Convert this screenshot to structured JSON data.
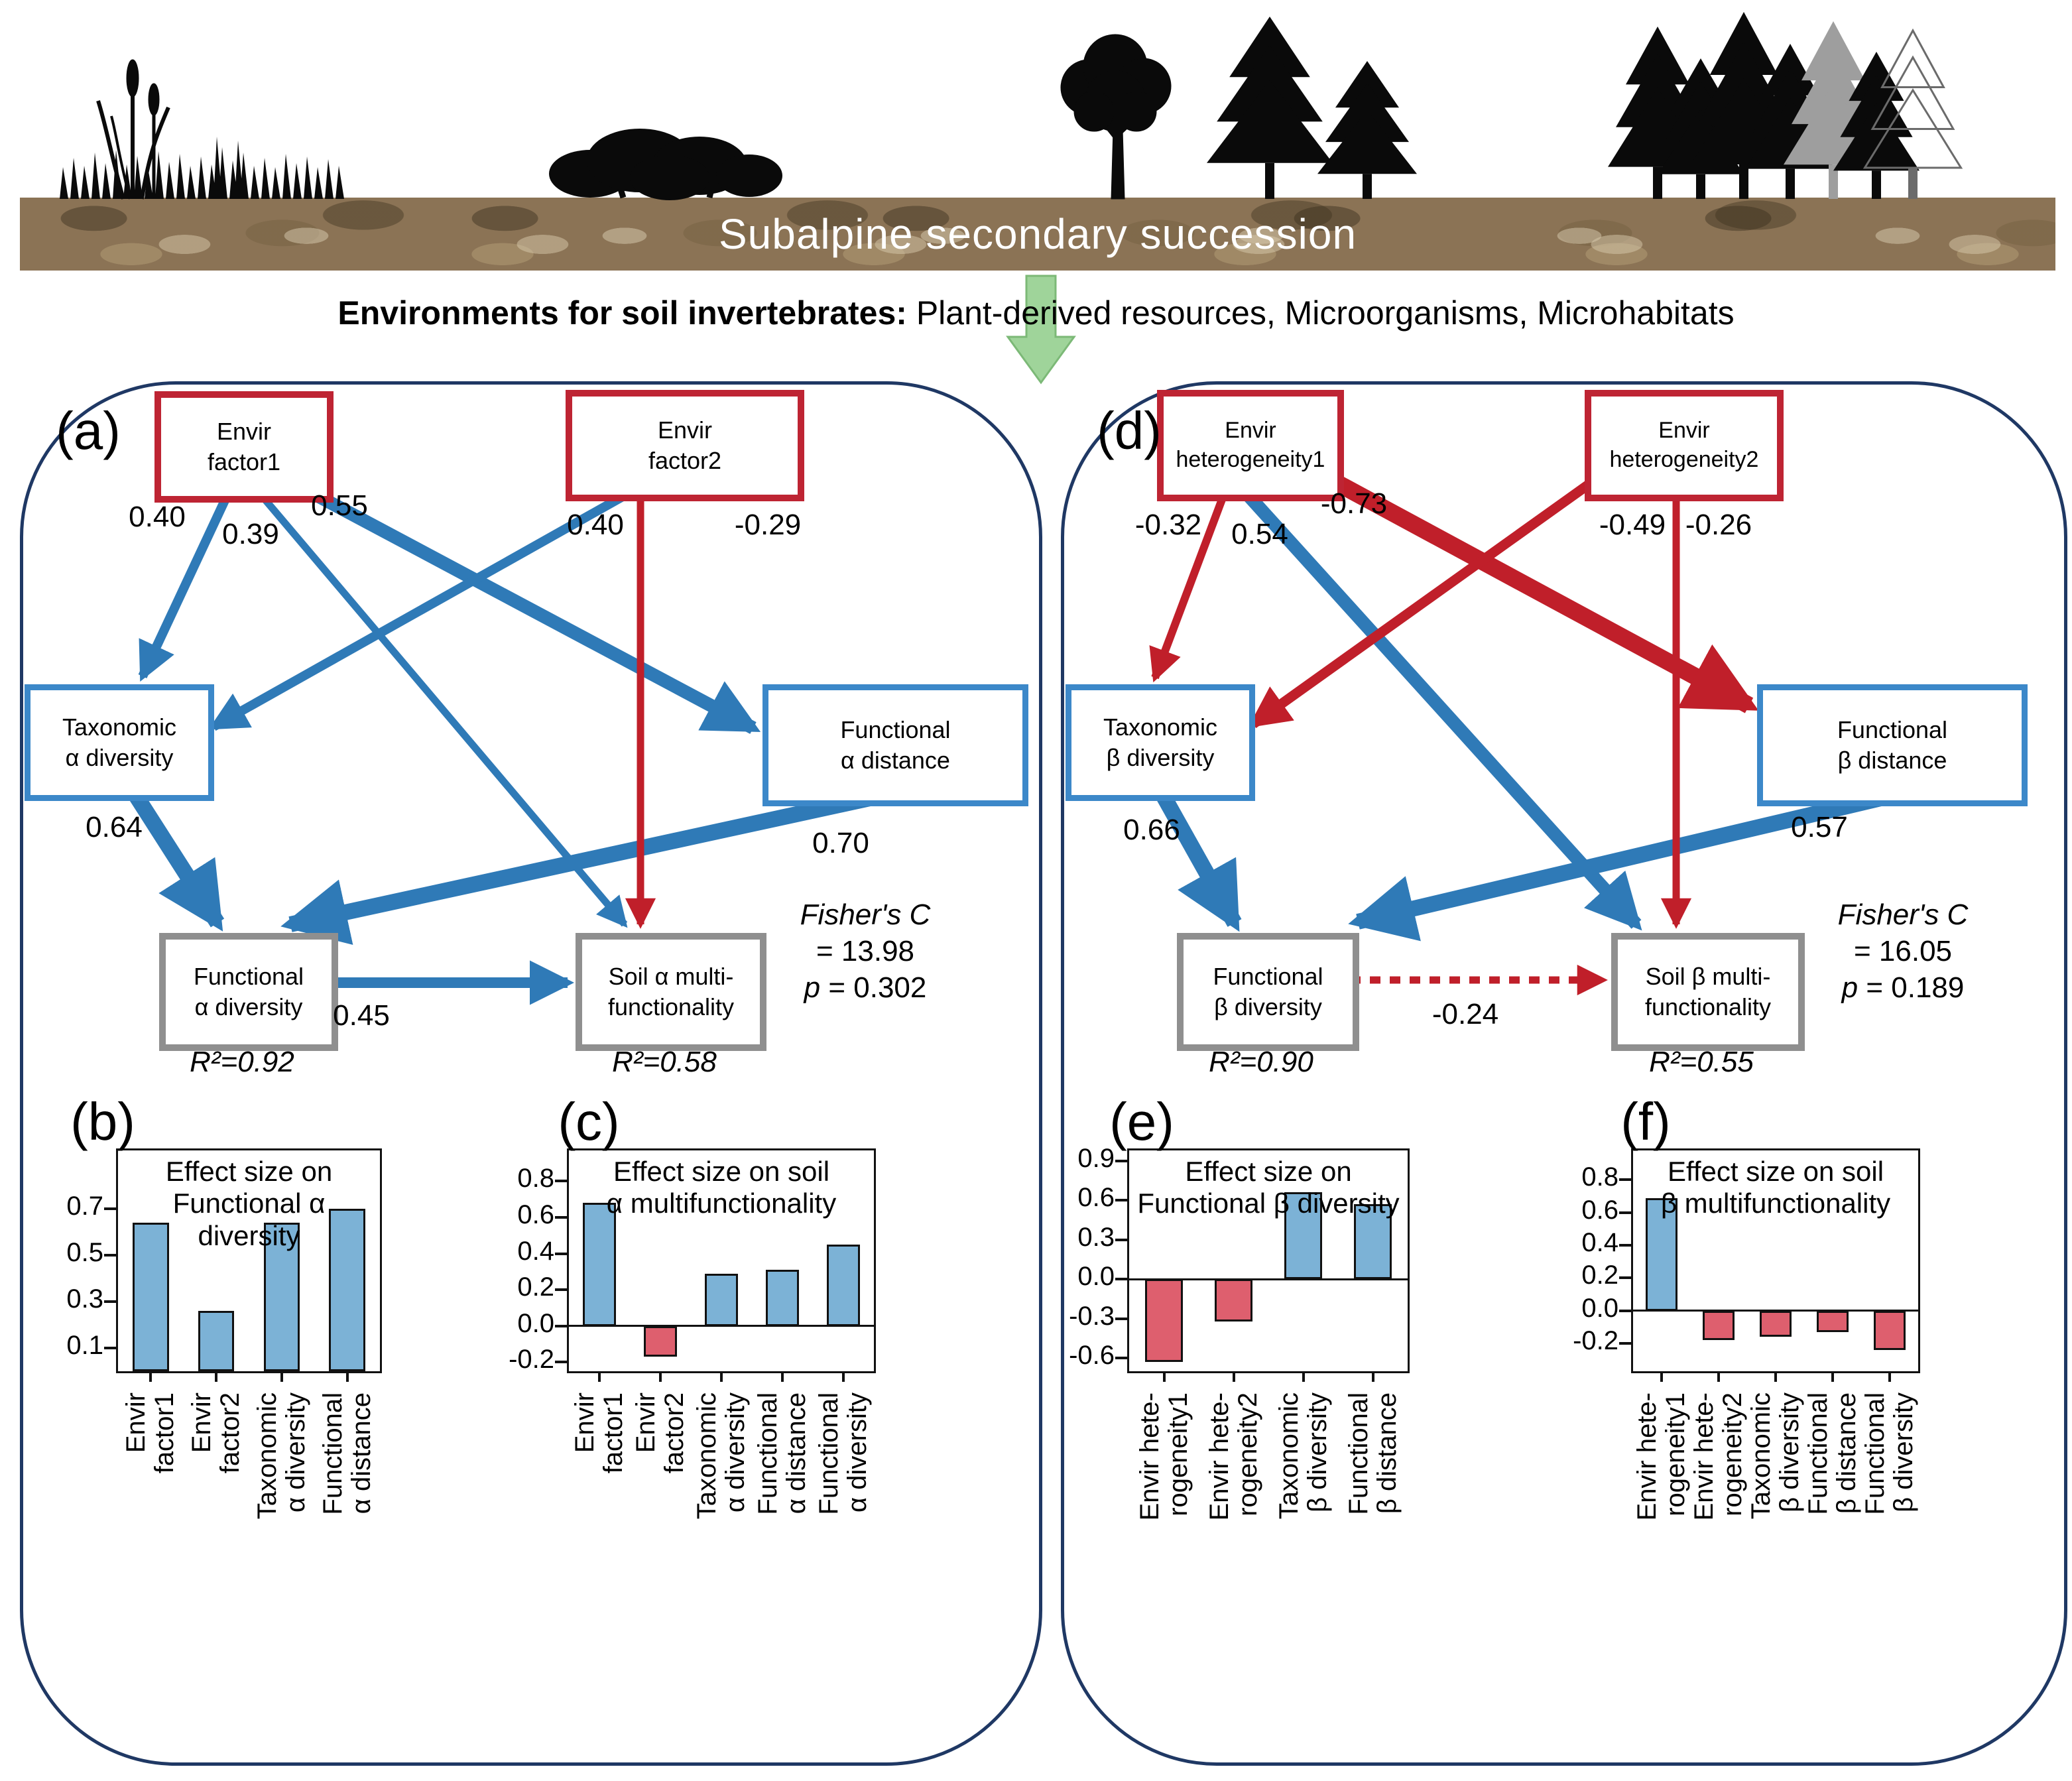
{
  "banner": {
    "title": "Subalpine secondary succession",
    "subtitle_bold": "Environments for soil invertebrates:",
    "subtitle_rest": " Plant-derived resources, Microorganisms, Microhabitats"
  },
  "icons": {
    "succession_stages": [
      "grass-icon",
      "shrubs-icon",
      "young-trees-icon",
      "mature-forest-icon"
    ],
    "transition": "green-down-arrow-icon"
  },
  "colors": {
    "arrow_blue": "#2f7ab7",
    "arrow_red": "#c01f2a",
    "bar_blue": "#7cb2d6",
    "bar_red": "#de5f6e",
    "box_red_border": "#be2433",
    "box_blue_border": "#3c88c9",
    "box_gray_border": "#8f8f8f",
    "panel_border": "#1f3864",
    "green_arrow": "#9fd49a",
    "soil": "#8b7355"
  },
  "sem_a": {
    "label": "(a)",
    "boxes": {
      "f1": {
        "line1": "Envir",
        "line2": "factor1"
      },
      "f2": {
        "line1": "Envir",
        "line2": "factor2"
      },
      "tax": {
        "line1": "Taxonomic",
        "line2": "α diversity"
      },
      "dist": {
        "line1": "Functional",
        "line2": "α distance"
      },
      "div": {
        "line1": "Functional",
        "line2": "α diversity",
        "r2": "R²=0.92"
      },
      "soil": {
        "line1": "Soil α multi-",
        "line2": "functionality",
        "r2": "R²=0.58"
      }
    },
    "coefs": {
      "f1_tax": "0.40",
      "f1_soil": "0.39",
      "f1_dist": "0.55",
      "f2_tax": "0.40",
      "f2_soil": "-0.29",
      "tax_div": "0.64",
      "dist_div": "0.70",
      "div_soil": "0.45"
    },
    "fit": {
      "name": "Fisher's C",
      "value": "= 13.98",
      "p_label": "p",
      "p_value": " = 0.302"
    }
  },
  "sem_d": {
    "label": "(d)",
    "boxes": {
      "h1": {
        "line1": "Envir",
        "line2": "heterogeneity1"
      },
      "h2": {
        "line1": "Envir",
        "line2": "heterogeneity2"
      },
      "tax": {
        "line1": "Taxonomic",
        "line2": "β diversity"
      },
      "dist": {
        "line1": "Functional",
        "line2": "β distance"
      },
      "div": {
        "line1": "Functional",
        "line2": "β diversity",
        "r2": "R²=0.90"
      },
      "soil": {
        "line1": "Soil β multi-",
        "line2": "functionality",
        "r2": "R²=0.55"
      }
    },
    "coefs": {
      "h1_tax": "-0.32",
      "h1_dist": "-0.73",
      "h1_soil": "0.54",
      "h2_tax": "-0.49",
      "h2_soil": "-0.26",
      "tax_div": "0.66",
      "dist_div": "0.57",
      "div_soil": "-0.24"
    },
    "fit": {
      "name": "Fisher's C",
      "value": "= 16.05",
      "p_label": "p",
      "p_value": " = 0.189"
    }
  },
  "chart_data": [
    {
      "id": "b",
      "label": "(b)",
      "type": "bar",
      "title_line1": "Effect size on",
      "title_line2": "Functional α diversity",
      "categories": [
        "Envir\nfactor1",
        "Envir\nfactor2",
        "Taxonomic\nα diversity",
        "Functional\nα distance"
      ],
      "values": [
        0.64,
        0.26,
        0.64,
        0.7
      ],
      "bar_colors": [
        "blue",
        "blue",
        "blue",
        "blue"
      ],
      "yticks": [
        "0.7",
        "0.5",
        "0.3",
        "0.1"
      ],
      "ylim": [
        0,
        0.95
      ],
      "xlabel": "",
      "ylabel": "",
      "grid": false,
      "legend": "none"
    },
    {
      "id": "c",
      "label": "(c)",
      "type": "bar",
      "title_line1": "Effect size on soil",
      "title_line2": "α multifunctionality",
      "categories": [
        "Envir\nfactor1",
        "Envir\nfactor2",
        "Taxonomic\nα diversity",
        "Functional\nα distance",
        "Functional\nα diversity"
      ],
      "values": [
        0.68,
        -0.17,
        0.29,
        0.31,
        0.45
      ],
      "bar_colors": [
        "blue",
        "red",
        "blue",
        "blue",
        "blue"
      ],
      "yticks": [
        "0.8",
        "0.6",
        "0.4",
        "0.2",
        "0.0",
        "-0.2"
      ],
      "ylim": [
        -0.25,
        0.97
      ],
      "xlabel": "",
      "ylabel": "",
      "grid": false,
      "legend": "none"
    },
    {
      "id": "e",
      "label": "(e)",
      "type": "bar",
      "title_line1": "Effect size on",
      "title_line2": "Functional β diversity",
      "categories": [
        "Envir hete-\nrogeneity1",
        "Envir hete-\nrogeneity2",
        "Taxonomic\nβ diversity",
        "Functional\nβ distance"
      ],
      "values": [
        -0.63,
        -0.32,
        0.66,
        0.57
      ],
      "bar_colors": [
        "red",
        "red",
        "blue",
        "blue"
      ],
      "yticks": [
        "0.9",
        "0.6",
        "0.3",
        "0.0",
        "-0.3",
        "-0.6"
      ],
      "ylim": [
        -0.7,
        0.98
      ],
      "xlabel": "",
      "ylabel": "",
      "grid": false,
      "legend": "none"
    },
    {
      "id": "f",
      "label": "(f)",
      "type": "bar",
      "title_line1": "Effect size on soil",
      "title_line2": "β multifunctionality",
      "categories": [
        "Envir hete-\nrogeneity1",
        "Envir hete-\nrogeneity2",
        "Taxonomic\nβ diversity",
        "Functional\nβ distance",
        "Functional\nβ diversity"
      ],
      "values": [
        0.69,
        -0.18,
        -0.16,
        -0.13,
        -0.24
      ],
      "bar_colors": [
        "blue",
        "red",
        "red",
        "red",
        "red"
      ],
      "yticks": [
        "0.8",
        "0.6",
        "0.4",
        "0.2",
        "0.0",
        "-0.2"
      ],
      "ylim": [
        -0.37,
        0.98
      ],
      "xlabel": "",
      "ylabel": "",
      "grid": false,
      "legend": "none"
    }
  ]
}
